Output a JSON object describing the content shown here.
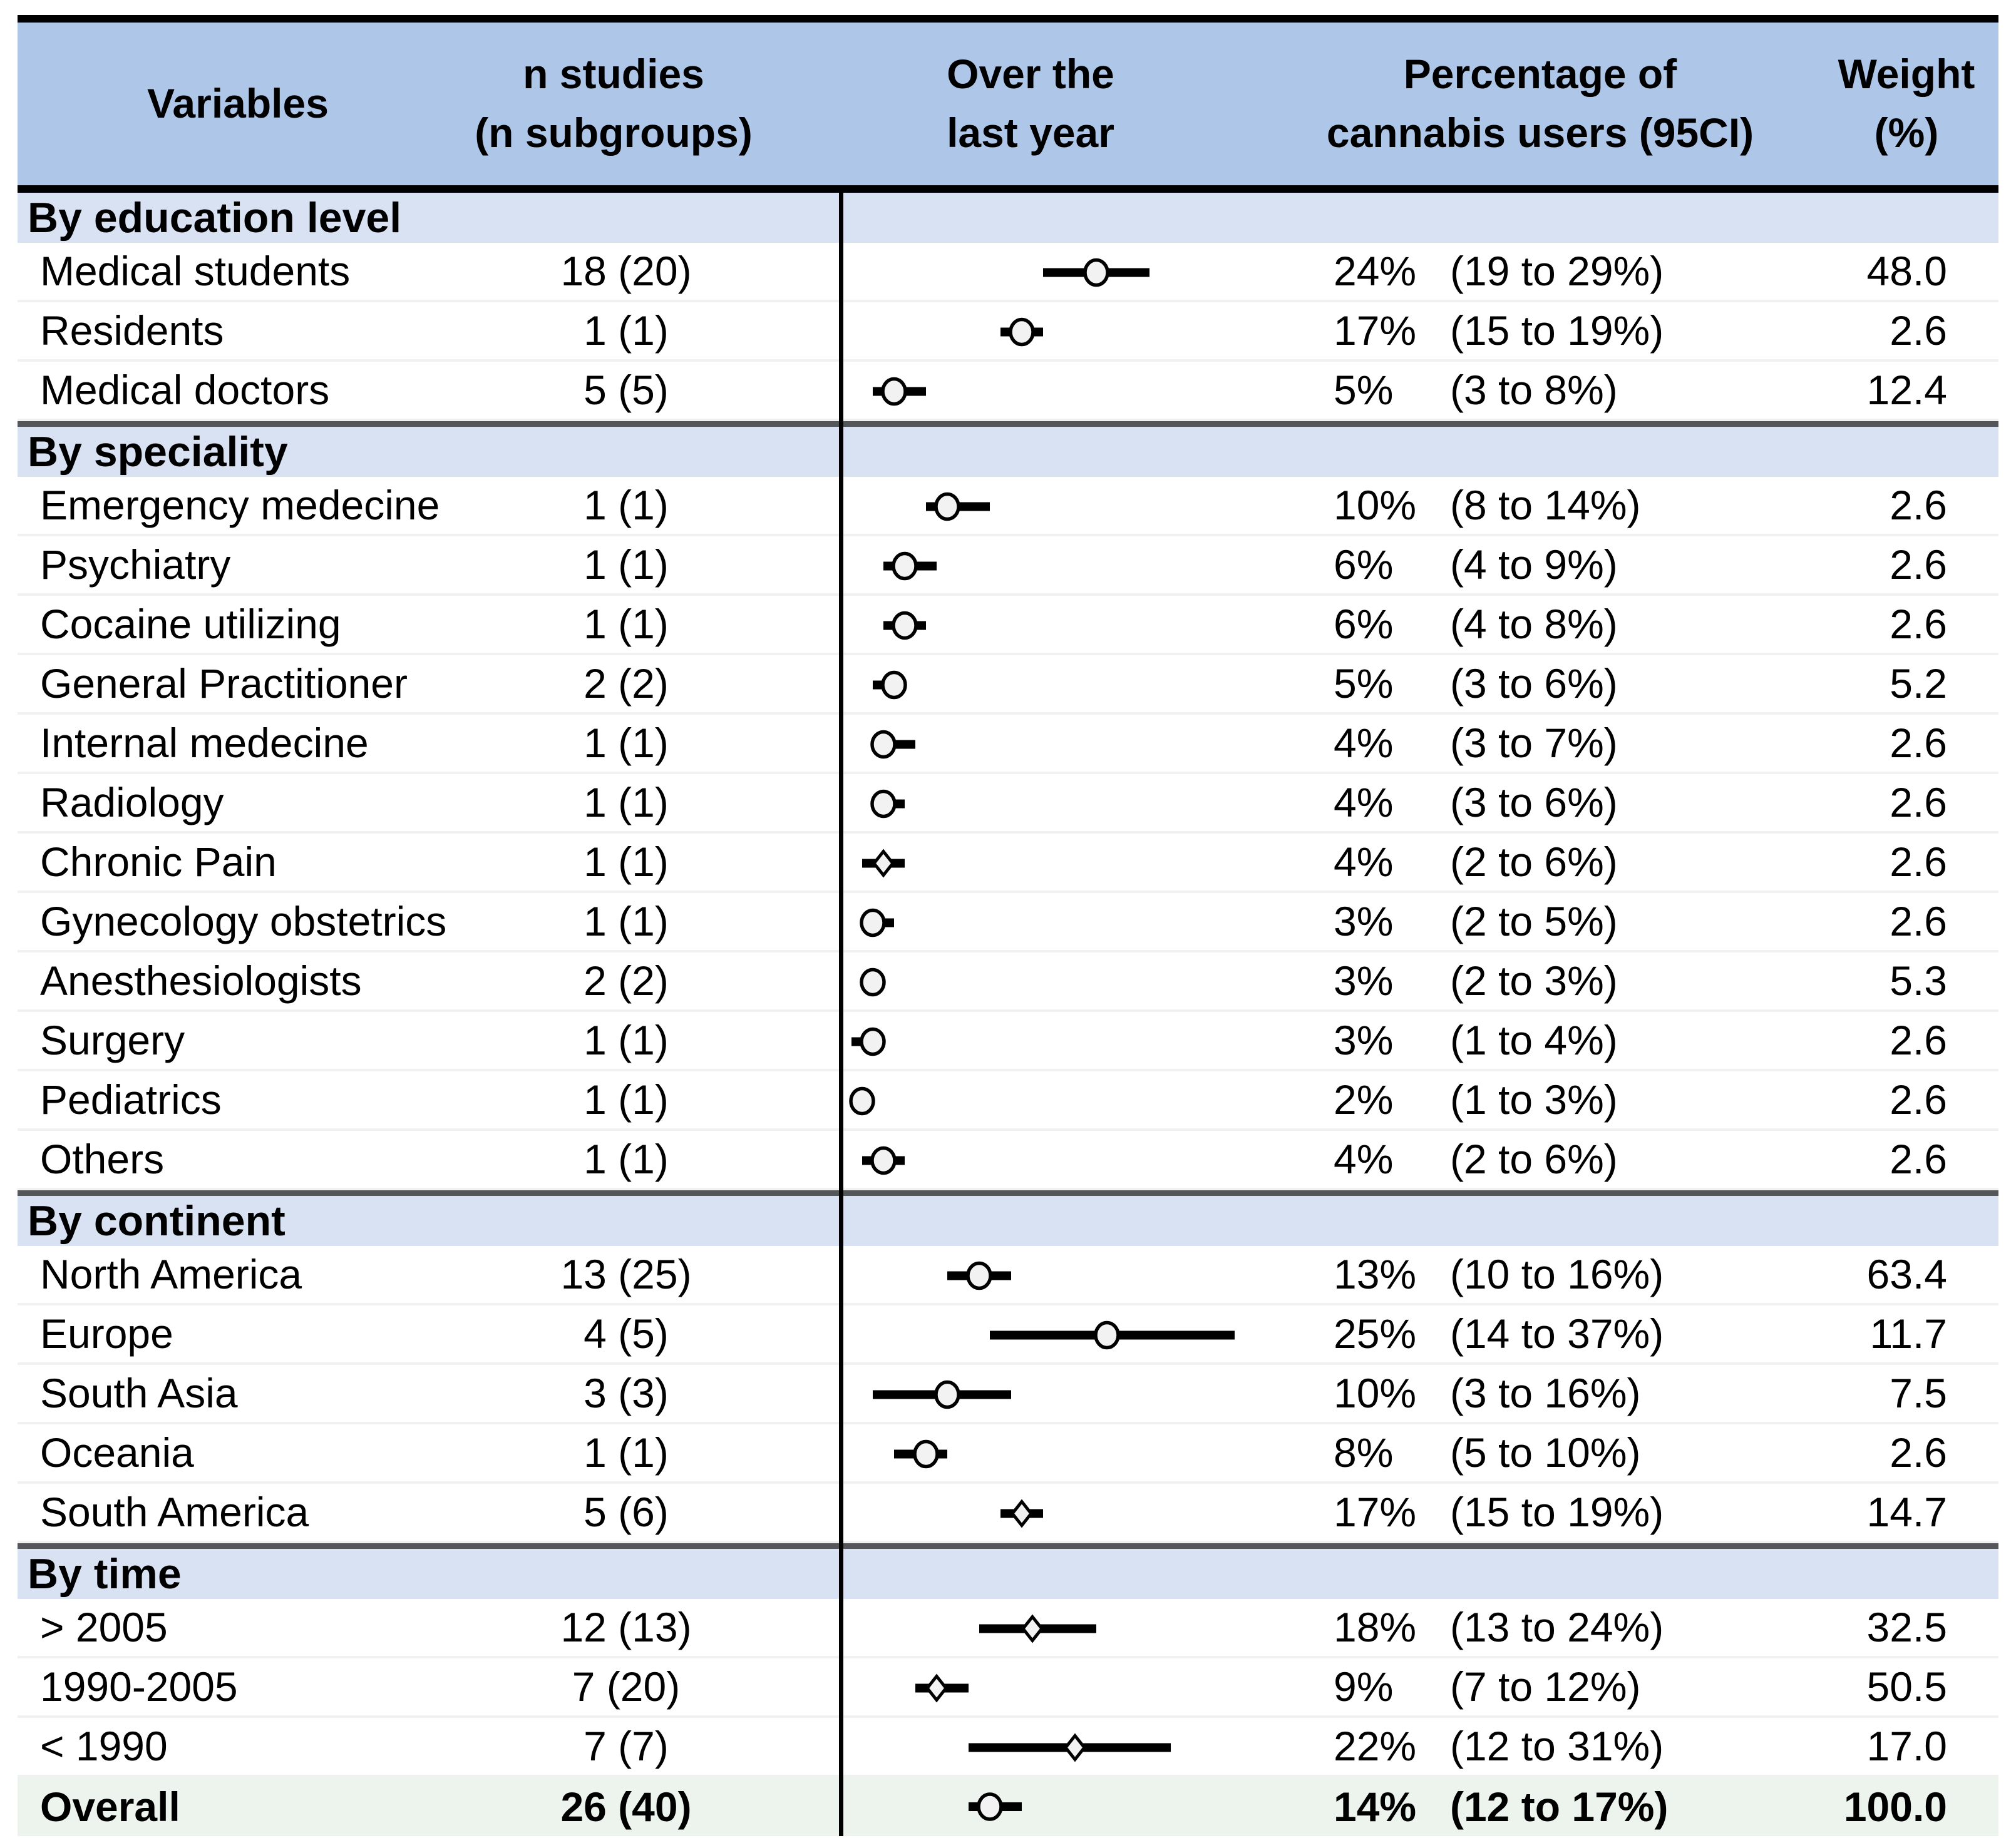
{
  "colors": {
    "header_bg": "#aec6e8",
    "section_bg": "#d9e2f3",
    "overall_bg": "#edf4ed",
    "row_separator": "#f1f1f1",
    "section_separator": "#55565a",
    "marker_fill": "#f2f2f2",
    "marker_stroke": "#000000",
    "ci_color": "#000000"
  },
  "header": {
    "variables": "Variables",
    "n_studies": "n studies\n(n subgroups)",
    "plot": "Over the\nlast year",
    "percentage": "Percentage of\ncannabis users (95CI)",
    "weight": "Weight\n(%)"
  },
  "axis": {
    "tick_labels": [
      "0",
      "10",
      "20",
      "30",
      "40"
    ],
    "tick_values": [
      0,
      10,
      20,
      30,
      40
    ]
  },
  "chart_data": {
    "type": "scatter",
    "variant": "forest-plot",
    "title": "Over the last year",
    "xlabel": "Percentage of cannabis users (95CI)",
    "xlim": [
      0,
      45
    ],
    "x_ticks": [
      0,
      10,
      20,
      30,
      40
    ],
    "grid": false,
    "groups": [
      {
        "name": "By education level",
        "rows": [
          {
            "label": "Medical students",
            "n_studies": "18 (20)",
            "estimate": 24,
            "ci_low": 19,
            "ci_high": 29,
            "pct_text": "24%",
            "ci_text": "(19 to 29%)",
            "weight": "48.0",
            "marker": "circle"
          },
          {
            "label": "Residents",
            "n_studies": "1 (1)",
            "estimate": 17,
            "ci_low": 15,
            "ci_high": 19,
            "pct_text": "17%",
            "ci_text": "(15 to 19%)",
            "weight": "2.6",
            "marker": "circle"
          },
          {
            "label": "Medical doctors",
            "n_studies": "5 (5)",
            "estimate": 5,
            "ci_low": 3,
            "ci_high": 8,
            "pct_text": "5%",
            "ci_text": "(3 to 8%)",
            "weight": "12.4",
            "marker": "circle"
          }
        ]
      },
      {
        "name": "By speciality",
        "rows": [
          {
            "label": "Emergency medecine",
            "n_studies": "1 (1)",
            "estimate": 10,
            "ci_low": 8,
            "ci_high": 14,
            "pct_text": "10%",
            "ci_text": "(8 to 14%)",
            "weight": "2.6",
            "marker": "circle"
          },
          {
            "label": "Psychiatry",
            "n_studies": "1 (1)",
            "estimate": 6,
            "ci_low": 4,
            "ci_high": 9,
            "pct_text": "6%",
            "ci_text": "(4 to 9%)",
            "weight": "2.6",
            "marker": "circle"
          },
          {
            "label": "Cocaine utilizing",
            "n_studies": "1 (1)",
            "estimate": 6,
            "ci_low": 4,
            "ci_high": 8,
            "pct_text": "6%",
            "ci_text": "(4 to 8%)",
            "weight": "2.6",
            "marker": "circle"
          },
          {
            "label": "General Practitioner",
            "n_studies": "2 (2)",
            "estimate": 5,
            "ci_low": 3,
            "ci_high": 6,
            "pct_text": "5%",
            "ci_text": "(3 to 6%)",
            "weight": "5.2",
            "marker": "circle"
          },
          {
            "label": "Internal medecine",
            "n_studies": "1 (1)",
            "estimate": 4,
            "ci_low": 3,
            "ci_high": 7,
            "pct_text": "4%",
            "ci_text": "(3 to 7%)",
            "weight": "2.6",
            "marker": "circle"
          },
          {
            "label": "Radiology",
            "n_studies": "1 (1)",
            "estimate": 4,
            "ci_low": 3,
            "ci_high": 6,
            "pct_text": "4%",
            "ci_text": "(3 to 6%)",
            "weight": "2.6",
            "marker": "circle"
          },
          {
            "label": "Chronic Pain",
            "n_studies": "1 (1)",
            "estimate": 4,
            "ci_low": 2,
            "ci_high": 6,
            "pct_text": "4%",
            "ci_text": "(2 to 6%)",
            "weight": "2.6",
            "marker": "diamond"
          },
          {
            "label": "Gynecology obstetrics",
            "n_studies": "1 (1)",
            "estimate": 3,
            "ci_low": 2,
            "ci_high": 5,
            "pct_text": "3%",
            "ci_text": "(2 to 5%)",
            "weight": "2.6",
            "marker": "circle"
          },
          {
            "label": "Anesthesiologists",
            "n_studies": "2 (2)",
            "estimate": 3,
            "ci_low": 2,
            "ci_high": 3,
            "pct_text": "3%",
            "ci_text": "(2 to 3%)",
            "weight": "5.3",
            "marker": "circle"
          },
          {
            "label": "Surgery",
            "n_studies": "1 (1)",
            "estimate": 3,
            "ci_low": 1,
            "ci_high": 4,
            "pct_text": "3%",
            "ci_text": "(1 to 4%)",
            "weight": "2.6",
            "marker": "circle"
          },
          {
            "label": "Pediatrics",
            "n_studies": "1 (1)",
            "estimate": 2,
            "ci_low": 1,
            "ci_high": 3,
            "pct_text": "2%",
            "ci_text": "(1 to 3%)",
            "weight": "2.6",
            "marker": "circle"
          },
          {
            "label": "Others",
            "n_studies": "1 (1)",
            "estimate": 4,
            "ci_low": 2,
            "ci_high": 6,
            "pct_text": "4%",
            "ci_text": "(2 to 6%)",
            "weight": "2.6",
            "marker": "circle"
          }
        ]
      },
      {
        "name": "By continent",
        "rows": [
          {
            "label": "North America",
            "n_studies": "13 (25)",
            "estimate": 13,
            "ci_low": 10,
            "ci_high": 16,
            "pct_text": "13%",
            "ci_text": "(10 to 16%)",
            "weight": "63.4",
            "marker": "circle"
          },
          {
            "label": "Europe",
            "n_studies": "4 (5)",
            "estimate": 25,
            "ci_low": 14,
            "ci_high": 37,
            "pct_text": "25%",
            "ci_text": "(14 to 37%)",
            "weight": "11.7",
            "marker": "circle"
          },
          {
            "label": "South Asia",
            "n_studies": "3 (3)",
            "estimate": 10,
            "ci_low": 3,
            "ci_high": 16,
            "pct_text": "10%",
            "ci_text": "(3 to 16%)",
            "weight": "7.5",
            "marker": "circle"
          },
          {
            "label": "Oceania",
            "n_studies": "1 (1)",
            "estimate": 8,
            "ci_low": 5,
            "ci_high": 10,
            "pct_text": "8%",
            "ci_text": "(5 to 10%)",
            "weight": "2.6",
            "marker": "circle"
          },
          {
            "label": "South America",
            "n_studies": "5 (6)",
            "estimate": 17,
            "ci_low": 15,
            "ci_high": 19,
            "pct_text": "17%",
            "ci_text": "(15 to 19%)",
            "weight": "14.7",
            "marker": "diamond"
          }
        ]
      },
      {
        "name": "By time",
        "rows": [
          {
            "label": "> 2005",
            "n_studies": "12 (13)",
            "estimate": 18,
            "ci_low": 13,
            "ci_high": 24,
            "pct_text": "18%",
            "ci_text": "(13 to 24%)",
            "weight": "32.5",
            "marker": "diamond"
          },
          {
            "label": "1990-2005",
            "n_studies": "7 (20)",
            "estimate": 9,
            "ci_low": 7,
            "ci_high": 12,
            "pct_text": "9%",
            "ci_text": "(7 to 12%)",
            "weight": "50.5",
            "marker": "diamond"
          },
          {
            "label": "< 1990",
            "n_studies": "7 (7)",
            "estimate": 22,
            "ci_low": 12,
            "ci_high": 31,
            "pct_text": "22%",
            "ci_text": "(12 to 31%)",
            "weight": "17.0",
            "marker": "diamond"
          }
        ]
      }
    ],
    "overall": {
      "label": "Overall",
      "n_studies": "26 (40)",
      "estimate": 14,
      "ci_low": 12,
      "ci_high": 17,
      "pct_text": "14%",
      "ci_text": "(12 to 17%)",
      "weight": "100.0",
      "marker": "circle"
    }
  }
}
